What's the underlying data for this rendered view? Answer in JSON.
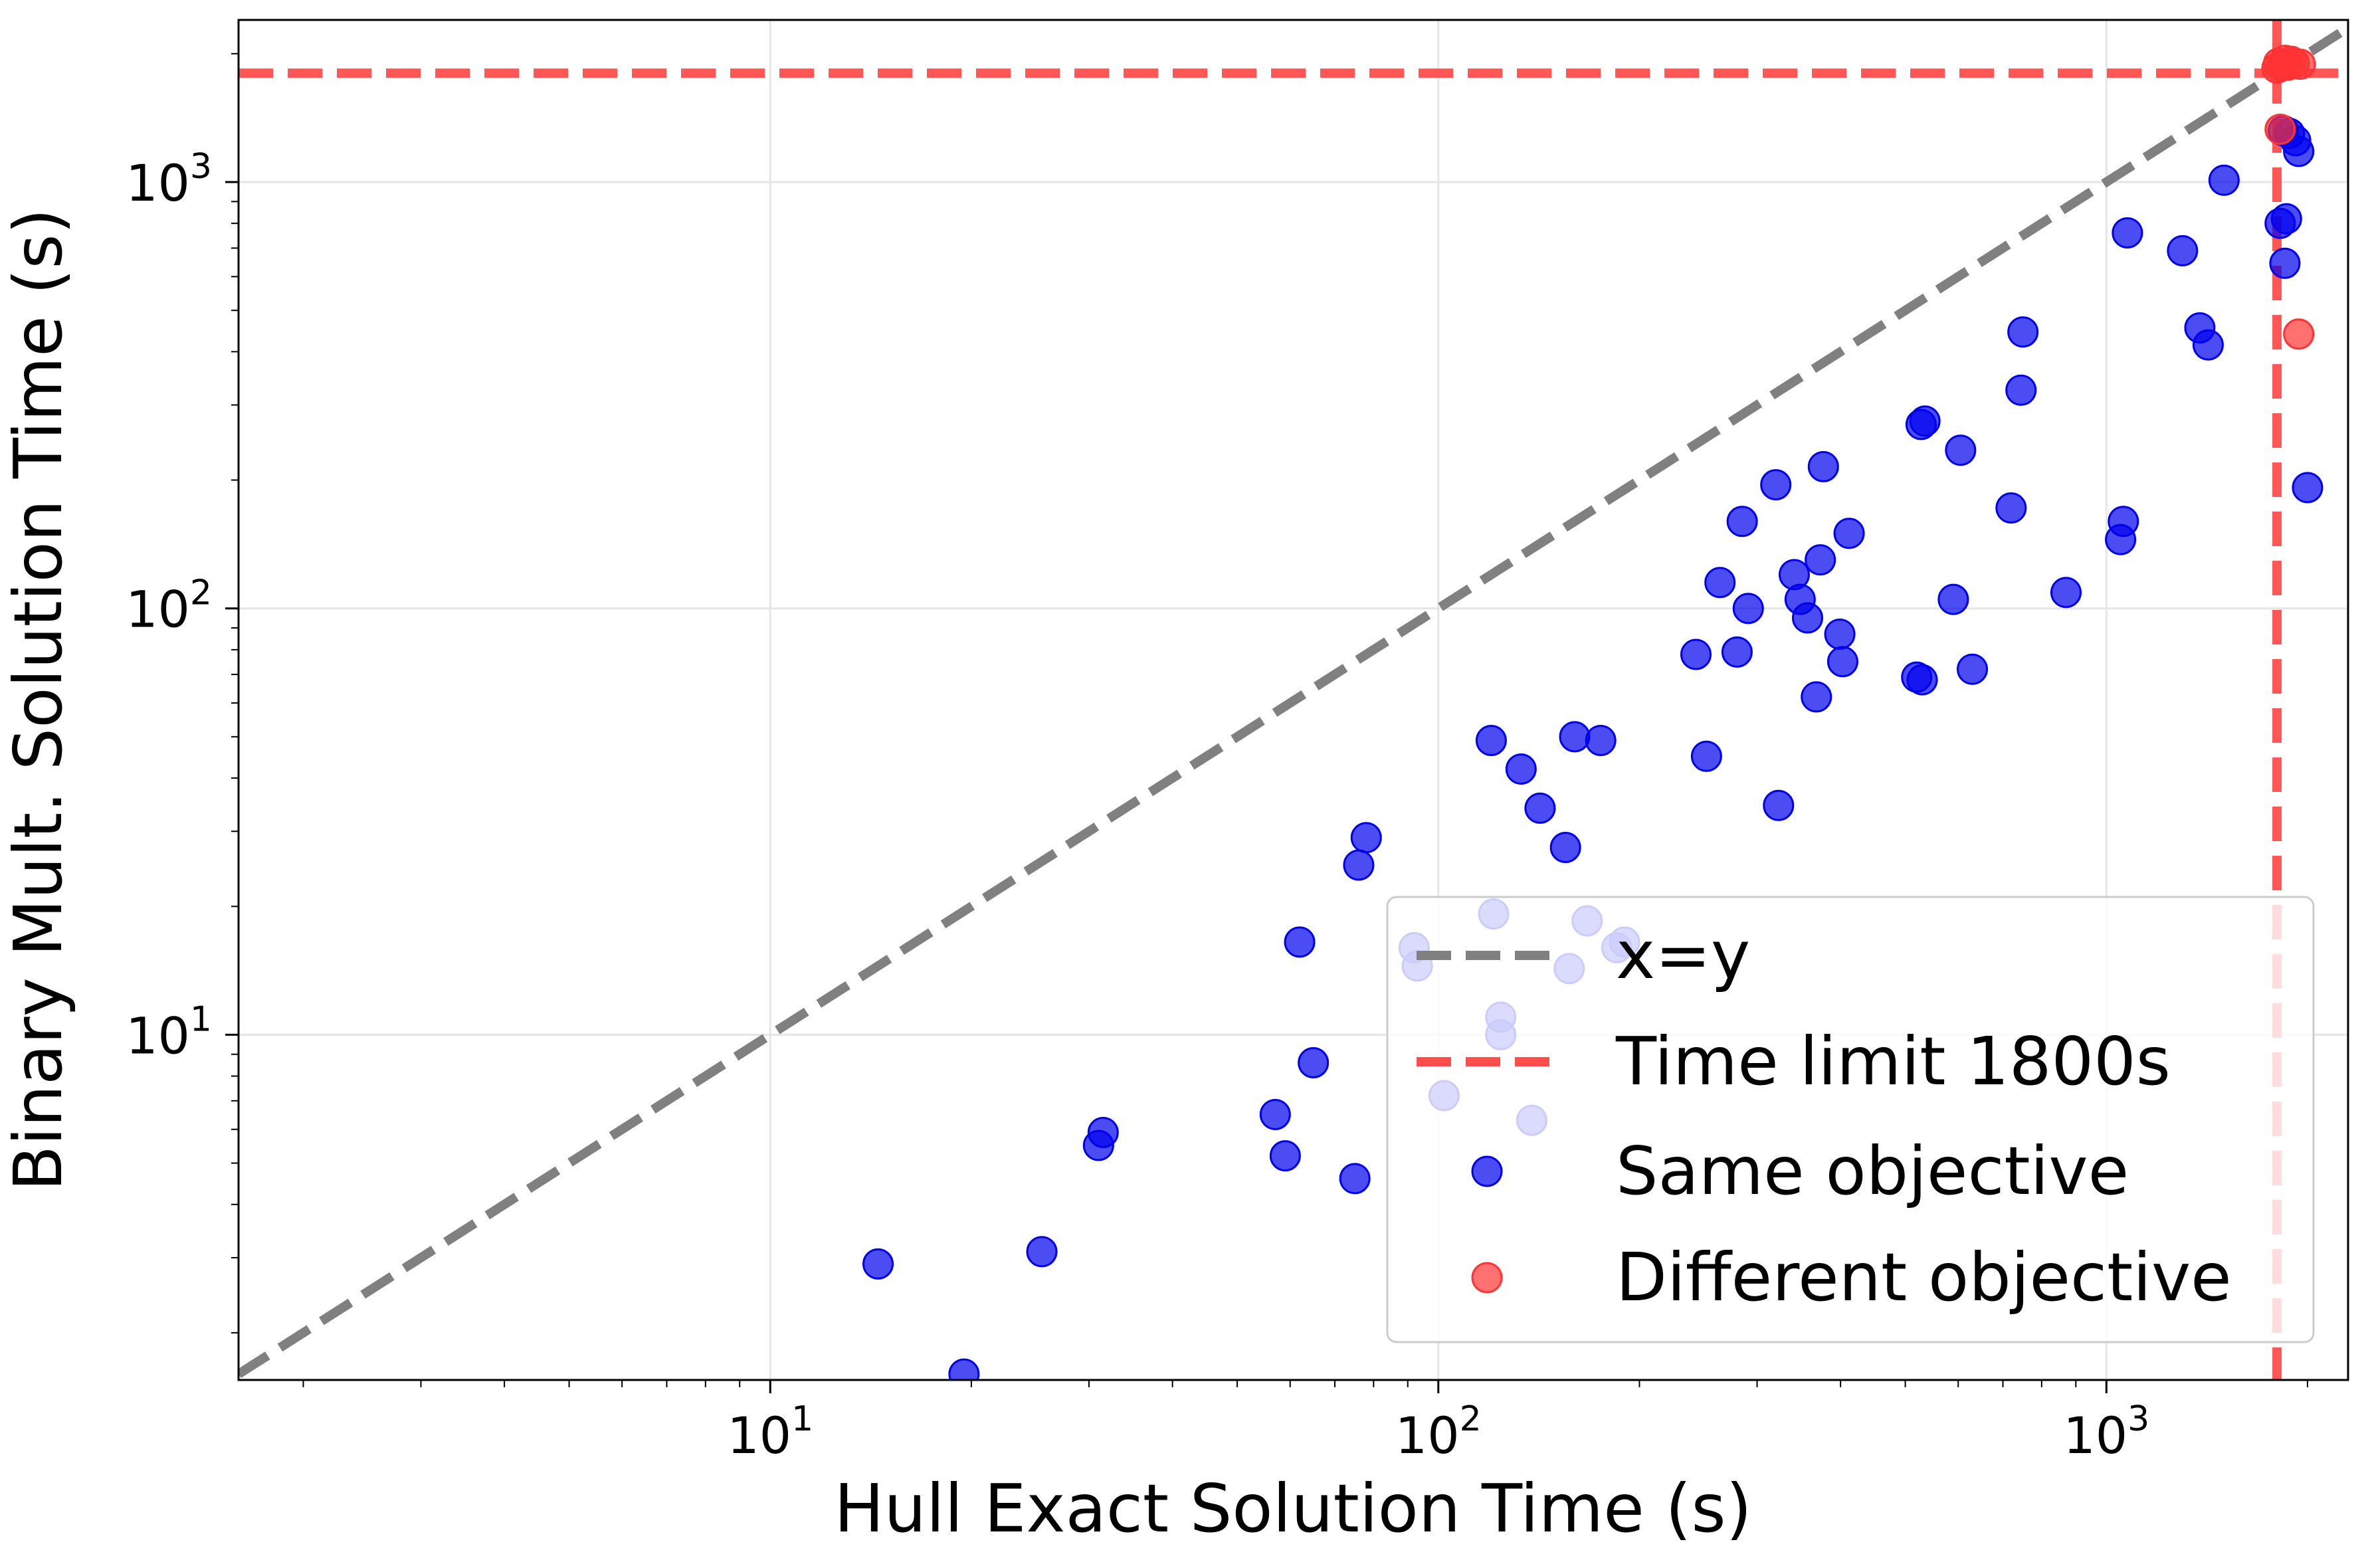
{
  "chart_data": {
    "type": "scatter",
    "title": "",
    "xlabel": "Hull Exact Solution Time (s)",
    "ylabel": "Binary Mult. Solution Time (s)",
    "xscale": "log",
    "yscale": "log",
    "xlim": [
      1.6,
      2300
    ],
    "ylim": [
      1.55,
      2400
    ],
    "grid": true,
    "legend_position": "bottom-right",
    "x_ticks": [
      {
        "value": 10,
        "base": "10",
        "exp": "1"
      },
      {
        "value": 100,
        "base": "10",
        "exp": "2"
      },
      {
        "value": 1000,
        "base": "10",
        "exp": "3"
      }
    ],
    "y_ticks": [
      {
        "value": 10,
        "base": "10",
        "exp": "1"
      },
      {
        "value": 100,
        "base": "10",
        "exp": "2"
      },
      {
        "value": 1000,
        "base": "10",
        "exp": "3"
      }
    ],
    "reference_lines": [
      {
        "name": "x=y",
        "kind": "diagonal",
        "color": "#808080",
        "style": "dashed"
      },
      {
        "name": "Time limit 1800s",
        "kind": "time-limit",
        "value": 1800,
        "color": "#ff4d4d",
        "style": "dashed"
      }
    ],
    "series": [
      {
        "name": "Same objective",
        "color": "#0000ee",
        "points": [
          [
            14.5,
            2.9
          ],
          [
            19.5,
            1.6
          ],
          [
            25.5,
            3.1
          ],
          [
            31,
            5.5
          ],
          [
            31.5,
            5.9
          ],
          [
            57,
            6.5
          ],
          [
            59,
            5.2
          ],
          [
            62,
            16.5
          ],
          [
            65,
            8.6
          ],
          [
            75,
            4.6
          ],
          [
            76,
            25
          ],
          [
            78,
            29
          ],
          [
            92,
            16
          ],
          [
            93,
            14.5
          ],
          [
            102,
            7.2
          ],
          [
            120,
            49
          ],
          [
            121,
            19.2
          ],
          [
            124,
            11
          ],
          [
            124,
            10
          ],
          [
            133,
            42
          ],
          [
            138,
            6.3
          ],
          [
            142,
            34
          ],
          [
            155,
            27.5
          ],
          [
            157,
            14.3
          ],
          [
            160,
            50
          ],
          [
            167,
            18.5
          ],
          [
            175,
            49
          ],
          [
            185,
            16
          ],
          [
            190,
            16.5
          ],
          [
            243,
            78
          ],
          [
            252,
            45
          ],
          [
            264,
            115
          ],
          [
            280,
            79
          ],
          [
            285,
            160
          ],
          [
            291,
            100
          ],
          [
            320,
            195
          ],
          [
            323,
            34.5
          ],
          [
            341,
            120
          ],
          [
            348,
            105
          ],
          [
            357,
            95
          ],
          [
            368,
            62
          ],
          [
            373,
            130
          ],
          [
            377,
            215
          ],
          [
            399,
            87
          ],
          [
            403,
            75
          ],
          [
            412,
            150
          ],
          [
            520,
            69
          ],
          [
            528,
            270
          ],
          [
            530,
            68
          ],
          [
            535,
            275
          ],
          [
            590,
            105
          ],
          [
            605,
            235
          ],
          [
            630,
            72
          ],
          [
            720,
            172
          ],
          [
            745,
            325
          ],
          [
            750,
            445
          ],
          [
            870,
            109
          ],
          [
            1050,
            145
          ],
          [
            1060,
            160
          ],
          [
            1075,
            760
          ],
          [
            1300,
            690
          ],
          [
            1380,
            455
          ],
          [
            1420,
            415
          ],
          [
            1500,
            1010
          ],
          [
            1820,
            800
          ],
          [
            1840,
            1320
          ],
          [
            1860,
            820
          ],
          [
            1850,
            645
          ],
          [
            1880,
            1300
          ],
          [
            1920,
            1250
          ],
          [
            1940,
            1180
          ],
          [
            2000,
            192
          ]
        ]
      },
      {
        "name": "Different objective",
        "color": "#ff3333",
        "points": [
          [
            1800,
            1850
          ],
          [
            1810,
            1900
          ],
          [
            1830,
            1870
          ],
          [
            1850,
            1930
          ],
          [
            1870,
            1880
          ],
          [
            1890,
            1920
          ],
          [
            1910,
            1900
          ],
          [
            1950,
            1890
          ],
          [
            1820,
            1330
          ],
          [
            1940,
            440
          ]
        ]
      }
    ]
  }
}
